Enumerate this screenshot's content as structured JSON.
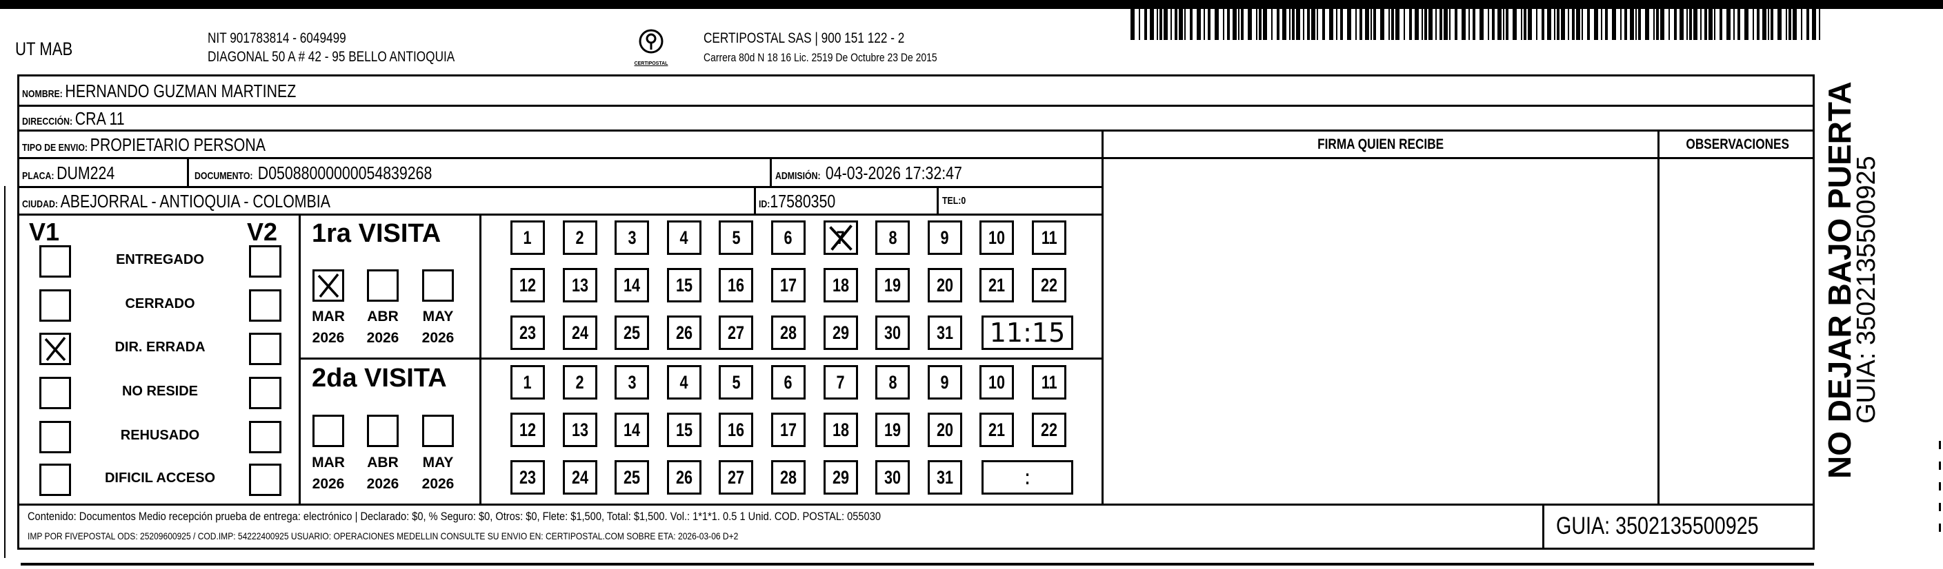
{
  "header": {
    "company": "UT MAB",
    "nit": "NIT 901783814 - 6049499",
    "address": "DIAGONAL 50 A # 42 - 95  BELLO  ANTIOQUIA",
    "logo_text": "CERTIPOSTAL",
    "carrier": "CERTIPOSTAL SAS | 900 151 122 - 2",
    "license": "Carrera 80d N 18 16  Lic. 2519 De Octubre 23 De 2015"
  },
  "fields": {
    "nombre_label": "NOMBRE:",
    "nombre": "HERNANDO GUZMAN MARTINEZ",
    "direccion_label": "DIRECCIÓN:",
    "direccion": "CRA 11",
    "tipo_label": "TIPO DE ENVIO:",
    "tipo": "PROPIETARIO PERSONA",
    "placa_label": "PLACA:",
    "placa": "DUM224",
    "documento_label": "DOCUMENTO:",
    "documento": "D05088000000054839268",
    "admision_label": "ADMISIÓN:",
    "admision": "04-03-2026 17:32:47",
    "ciudad_label": "CIUDAD:",
    "ciudad": "ABEJORRAL - ANTIOQUIA - COLOMBIA",
    "id_label": "ID:",
    "id": "17580350",
    "tel_label": "TEL:",
    "tel": "0"
  },
  "signature": {
    "firma_header": "FIRMA QUIEN RECIBE",
    "observaciones_header": "OBSERVACIONES"
  },
  "status": {
    "v1_header": "V1",
    "v2_header": "V2",
    "options": [
      {
        "label": "ENTREGADO",
        "v1": false,
        "v2": false
      },
      {
        "label": "CERRADO",
        "v1": false,
        "v2": false
      },
      {
        "label": "DIR. ERRADA",
        "v1": true,
        "v2": false
      },
      {
        "label": "NO RESIDE",
        "v1": false,
        "v2": false
      },
      {
        "label": "REHUSADO",
        "v1": false,
        "v2": false
      },
      {
        "label": "DIFICIL ACCESO",
        "v1": false,
        "v2": false
      }
    ]
  },
  "visits": [
    {
      "title": "1ra VISITA",
      "months": [
        {
          "month": "MAR",
          "year": "2026",
          "checked": true
        },
        {
          "month": "ABR",
          "year": "2026",
          "checked": false
        },
        {
          "month": "MAY",
          "year": "2026",
          "checked": false
        }
      ],
      "days": [
        "1",
        "2",
        "3",
        "4",
        "5",
        "6",
        "7",
        "8",
        "9",
        "10",
        "11",
        "12",
        "13",
        "14",
        "15",
        "16",
        "17",
        "18",
        "19",
        "20",
        "21",
        "22",
        "23",
        "24",
        "25",
        "26",
        "27",
        "28",
        "29",
        "30",
        "31"
      ],
      "marked_days": [
        7
      ],
      "time": "11:15"
    },
    {
      "title": "2da VISITA",
      "months": [
        {
          "month": "MAR",
          "year": "2026",
          "checked": false
        },
        {
          "month": "ABR",
          "year": "2026",
          "checked": false
        },
        {
          "month": "MAY",
          "year": "2026",
          "checked": false
        }
      ],
      "days": [
        "1",
        "2",
        "3",
        "4",
        "5",
        "6",
        "7",
        "8",
        "9",
        "10",
        "11",
        "12",
        "13",
        "14",
        "15",
        "16",
        "17",
        "18",
        "19",
        "20",
        "21",
        "22",
        "23",
        "24",
        "25",
        "26",
        "27",
        "28",
        "29",
        "30",
        "31"
      ],
      "marked_days": [],
      "time": ":"
    }
  ],
  "footer": {
    "line1": "Contenido: Documentos Medio recepción prueba de entrega: electrónico | Declarado: $0, % Seguro: $0, Otros: $0, Flete: $1,500, Total: $1,500. Vol.: 1*1*1. 0.5  1 Unid. COD. POSTAL: 055030",
    "line2": "IMP POR FIVEPOSTAL ODS: 25209600925 / COD.IMP: 54222400925 USUARIO: OPERACIONES MEDELLIN CONSULTE SU ENVIO EN: CERTIPOSTAL.COM SOBRE ETA: 2026-03-06 D+2",
    "guia": "GUIA: 3502135500925"
  },
  "side": {
    "warning": "NO DEJAR BAJO PUERTA",
    "guia": "GUIA: 3502135500925"
  }
}
